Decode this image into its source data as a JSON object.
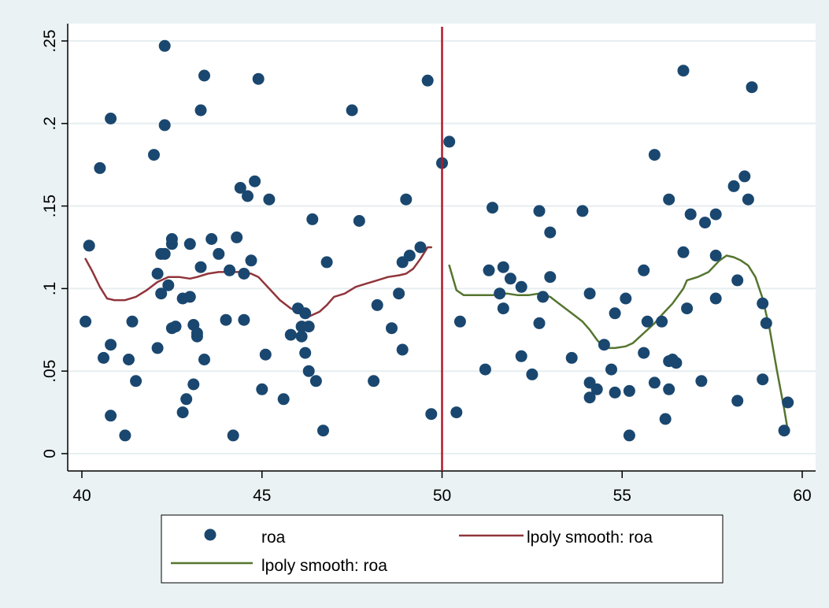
{
  "chart_data": {
    "type": "scatter",
    "title": "",
    "xlabel": "",
    "ylabel": "",
    "xlim": [
      40,
      60
    ],
    "ylim": [
      0,
      0.25
    ],
    "x_ticks": [
      40,
      45,
      50,
      55,
      60
    ],
    "x_tick_labels": [
      "40",
      "45",
      "50",
      "55",
      "60"
    ],
    "y_ticks": [
      0,
      0.05,
      0.1,
      0.15,
      0.2,
      0.25
    ],
    "y_tick_labels": [
      "0",
      ".05",
      ".1",
      ".15",
      ".2",
      ".25"
    ],
    "grid": true,
    "cutoff_x": 50,
    "cutoff_color": "#b2182b",
    "legend_position": "bottom",
    "legend": [
      {
        "label": "roa",
        "kind": "marker",
        "color": "#1a476f"
      },
      {
        "label": "lpoly smooth: roa",
        "kind": "line",
        "color": "#90353b"
      },
      {
        "label": "lpoly smooth: roa",
        "kind": "line",
        "color": "#55752f"
      }
    ],
    "series": [
      {
        "kind": "scatter",
        "color": "#1a476f",
        "points": [
          [
            40.1,
            0.08
          ],
          [
            40.2,
            0.126
          ],
          [
            40.5,
            0.173
          ],
          [
            40.6,
            0.058
          ],
          [
            40.8,
            0.203
          ],
          [
            40.8,
            0.066
          ],
          [
            40.8,
            0.023
          ],
          [
            41.2,
            0.011
          ],
          [
            41.3,
            0.057
          ],
          [
            41.4,
            0.08
          ],
          [
            41.5,
            0.044
          ],
          [
            42.0,
            0.181
          ],
          [
            42.1,
            0.109
          ],
          [
            42.1,
            0.064
          ],
          [
            42.2,
            0.121
          ],
          [
            42.2,
            0.097
          ],
          [
            42.3,
            0.247
          ],
          [
            42.3,
            0.199
          ],
          [
            42.3,
            0.121
          ],
          [
            42.4,
            0.102
          ],
          [
            42.5,
            0.127
          ],
          [
            42.5,
            0.13
          ],
          [
            42.5,
            0.076
          ],
          [
            42.6,
            0.077
          ],
          [
            42.8,
            0.094
          ],
          [
            42.8,
            0.025
          ],
          [
            42.9,
            0.033
          ],
          [
            43.0,
            0.127
          ],
          [
            43.0,
            0.095
          ],
          [
            43.1,
            0.042
          ],
          [
            43.1,
            0.078
          ],
          [
            43.2,
            0.073
          ],
          [
            43.2,
            0.071
          ],
          [
            43.3,
            0.208
          ],
          [
            43.3,
            0.113
          ],
          [
            43.4,
            0.229
          ],
          [
            43.4,
            0.057
          ],
          [
            43.6,
            0.13
          ],
          [
            43.8,
            0.121
          ],
          [
            44.0,
            0.081
          ],
          [
            44.1,
            0.111
          ],
          [
            44.2,
            0.011
          ],
          [
            44.3,
            0.131
          ],
          [
            44.4,
            0.161
          ],
          [
            44.5,
            0.109
          ],
          [
            44.5,
            0.081
          ],
          [
            44.6,
            0.156
          ],
          [
            44.7,
            0.117
          ],
          [
            44.8,
            0.165
          ],
          [
            44.9,
            0.227
          ],
          [
            45.0,
            0.039
          ],
          [
            45.1,
            0.06
          ],
          [
            45.2,
            0.154
          ],
          [
            45.6,
            0.033
          ],
          [
            45.8,
            0.072
          ],
          [
            46.0,
            0.088
          ],
          [
            46.1,
            0.077
          ],
          [
            46.1,
            0.071
          ],
          [
            46.2,
            0.085
          ],
          [
            46.2,
            0.061
          ],
          [
            46.3,
            0.077
          ],
          [
            46.3,
            0.05
          ],
          [
            46.4,
            0.142
          ],
          [
            46.5,
            0.044
          ],
          [
            46.7,
            0.014
          ],
          [
            46.8,
            0.116
          ],
          [
            47.5,
            0.208
          ],
          [
            47.7,
            0.141
          ],
          [
            48.1,
            0.044
          ],
          [
            48.2,
            0.09
          ],
          [
            48.6,
            0.076
          ],
          [
            48.8,
            0.097
          ],
          [
            48.9,
            0.063
          ],
          [
            48.9,
            0.116
          ],
          [
            49.0,
            0.154
          ],
          [
            49.1,
            0.12
          ],
          [
            49.4,
            0.125
          ],
          [
            49.6,
            0.226
          ],
          [
            49.7,
            0.024
          ],
          [
            50.0,
            0.176
          ],
          [
            50.2,
            0.189
          ],
          [
            50.4,
            0.025
          ],
          [
            50.5,
            0.08
          ],
          [
            51.2,
            0.051
          ],
          [
            51.3,
            0.111
          ],
          [
            51.4,
            0.149
          ],
          [
            51.6,
            0.097
          ],
          [
            51.7,
            0.113
          ],
          [
            51.7,
            0.088
          ],
          [
            51.9,
            0.106
          ],
          [
            52.2,
            0.101
          ],
          [
            52.2,
            0.059
          ],
          [
            52.5,
            0.048
          ],
          [
            52.7,
            0.147
          ],
          [
            52.7,
            0.079
          ],
          [
            52.8,
            0.095
          ],
          [
            53.0,
            0.134
          ],
          [
            53.0,
            0.107
          ],
          [
            53.6,
            0.058
          ],
          [
            53.9,
            0.147
          ],
          [
            54.1,
            0.043
          ],
          [
            54.1,
            0.097
          ],
          [
            54.1,
            0.034
          ],
          [
            54.3,
            0.039
          ],
          [
            54.5,
            0.066
          ],
          [
            54.7,
            0.051
          ],
          [
            54.8,
            0.085
          ],
          [
            54.8,
            0.037
          ],
          [
            55.1,
            0.094
          ],
          [
            55.2,
            0.011
          ],
          [
            55.2,
            0.038
          ],
          [
            55.6,
            0.111
          ],
          [
            55.6,
            0.061
          ],
          [
            55.7,
            0.08
          ],
          [
            55.9,
            0.181
          ],
          [
            55.9,
            0.043
          ],
          [
            56.1,
            0.08
          ],
          [
            56.2,
            0.021
          ],
          [
            56.3,
            0.154
          ],
          [
            56.3,
            0.056
          ],
          [
            56.3,
            0.039
          ],
          [
            56.4,
            0.057
          ],
          [
            56.5,
            0.055
          ],
          [
            56.7,
            0.232
          ],
          [
            56.7,
            0.122
          ],
          [
            56.8,
            0.088
          ],
          [
            56.9,
            0.145
          ],
          [
            57.2,
            0.044
          ],
          [
            57.3,
            0.14
          ],
          [
            57.6,
            0.145
          ],
          [
            57.6,
            0.12
          ],
          [
            57.6,
            0.094
          ],
          [
            58.1,
            0.162
          ],
          [
            58.2,
            0.105
          ],
          [
            58.2,
            0.032
          ],
          [
            58.4,
            0.168
          ],
          [
            58.5,
            0.154
          ],
          [
            58.6,
            0.222
          ],
          [
            58.9,
            0.091
          ],
          [
            58.9,
            0.045
          ],
          [
            59.0,
            0.079
          ],
          [
            59.5,
            0.014
          ],
          [
            59.6,
            0.031
          ]
        ]
      },
      {
        "kind": "line",
        "color": "#90353b",
        "points": [
          [
            40.1,
            0.118
          ],
          [
            40.3,
            0.11
          ],
          [
            40.5,
            0.101
          ],
          [
            40.7,
            0.094
          ],
          [
            40.9,
            0.093
          ],
          [
            41.2,
            0.093
          ],
          [
            41.5,
            0.095
          ],
          [
            41.8,
            0.099
          ],
          [
            42.1,
            0.104
          ],
          [
            42.4,
            0.107
          ],
          [
            42.7,
            0.107
          ],
          [
            43.0,
            0.106
          ],
          [
            43.2,
            0.107
          ],
          [
            43.5,
            0.109
          ],
          [
            43.8,
            0.11
          ],
          [
            44.1,
            0.11
          ],
          [
            44.4,
            0.11
          ],
          [
            44.7,
            0.109
          ],
          [
            44.9,
            0.107
          ],
          [
            45.2,
            0.1
          ],
          [
            45.5,
            0.093
          ],
          [
            45.8,
            0.088
          ],
          [
            46.1,
            0.085
          ],
          [
            46.3,
            0.083
          ],
          [
            46.6,
            0.086
          ],
          [
            46.8,
            0.09
          ],
          [
            47.0,
            0.095
          ],
          [
            47.3,
            0.097
          ],
          [
            47.6,
            0.101
          ],
          [
            47.9,
            0.103
          ],
          [
            48.2,
            0.105
          ],
          [
            48.5,
            0.107
          ],
          [
            48.8,
            0.108
          ],
          [
            49.0,
            0.109
          ],
          [
            49.2,
            0.112
          ],
          [
            49.4,
            0.118
          ],
          [
            49.6,
            0.125
          ],
          [
            49.7,
            0.125
          ]
        ]
      },
      {
        "kind": "line",
        "color": "#55752f",
        "points": [
          [
            50.2,
            0.114
          ],
          [
            50.4,
            0.099
          ],
          [
            50.6,
            0.096
          ],
          [
            51.0,
            0.096
          ],
          [
            51.4,
            0.096
          ],
          [
            51.8,
            0.097
          ],
          [
            52.1,
            0.096
          ],
          [
            52.4,
            0.096
          ],
          [
            52.7,
            0.097
          ],
          [
            53.0,
            0.095
          ],
          [
            53.3,
            0.09
          ],
          [
            53.6,
            0.085
          ],
          [
            53.9,
            0.08
          ],
          [
            54.1,
            0.075
          ],
          [
            54.3,
            0.069
          ],
          [
            54.5,
            0.064
          ],
          [
            54.8,
            0.064
          ],
          [
            55.1,
            0.065
          ],
          [
            55.3,
            0.067
          ],
          [
            55.6,
            0.073
          ],
          [
            55.9,
            0.079
          ],
          [
            56.1,
            0.084
          ],
          [
            56.4,
            0.091
          ],
          [
            56.7,
            0.1
          ],
          [
            56.8,
            0.105
          ],
          [
            57.1,
            0.107
          ],
          [
            57.4,
            0.11
          ],
          [
            57.7,
            0.117
          ],
          [
            57.9,
            0.12
          ],
          [
            58.1,
            0.119
          ],
          [
            58.3,
            0.117
          ],
          [
            58.5,
            0.114
          ],
          [
            58.7,
            0.107
          ],
          [
            58.9,
            0.094
          ],
          [
            59.1,
            0.075
          ],
          [
            59.3,
            0.05
          ],
          [
            59.5,
            0.027
          ],
          [
            59.6,
            0.014
          ]
        ]
      }
    ]
  }
}
